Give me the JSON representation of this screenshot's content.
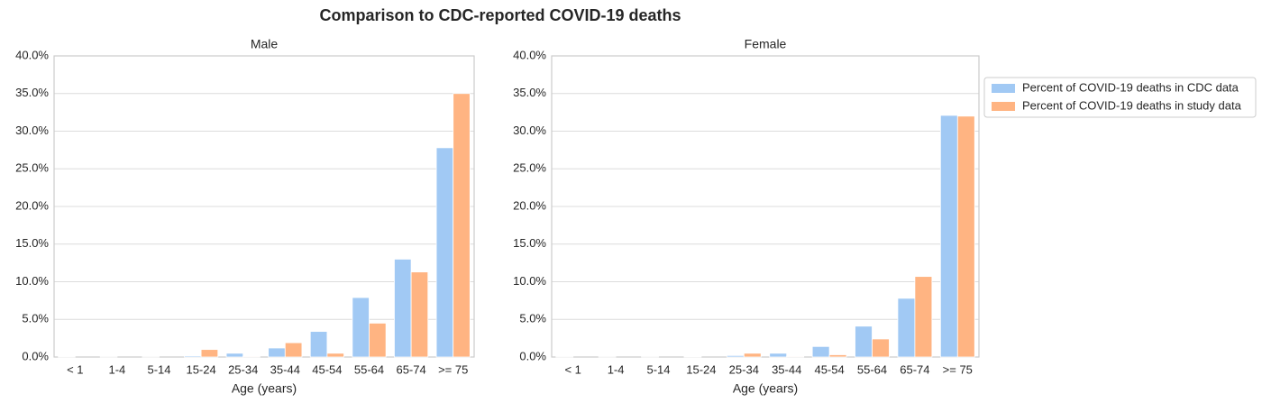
{
  "title": "Comparison to CDC-reported COVID-19 deaths",
  "chart_data": [
    {
      "type": "bar",
      "title": "Male",
      "xlabel": "Age (years)",
      "categories": [
        "< 1",
        "1-4",
        "5-14",
        "15-24",
        "25-34",
        "35-44",
        "45-54",
        "55-64",
        "65-74",
        ">= 75"
      ],
      "series": [
        {
          "color": "#a1c9f4",
          "values": [
            0.05,
            0.01,
            0.02,
            0.15,
            0.5,
            1.2,
            3.4,
            7.9,
            13.0,
            27.8
          ]
        },
        {
          "color": "#ffb482",
          "values": [
            0,
            0,
            0,
            1.0,
            0.1,
            1.9,
            0.5,
            4.5,
            11.3,
            35.0
          ]
        }
      ],
      "ylim": [
        0,
        40
      ],
      "yticks": [
        {
          "value": 0,
          "label": "0.0%"
        },
        {
          "value": 5,
          "label": "5.0%"
        },
        {
          "value": 10,
          "label": "10.0%"
        },
        {
          "value": 15,
          "label": "15.0%"
        },
        {
          "value": 20,
          "label": "20.0%"
        },
        {
          "value": 25,
          "label": "25.0%"
        },
        {
          "value": 30,
          "label": "30.0%"
        },
        {
          "value": 35,
          "label": "35.0%"
        },
        {
          "value": 40,
          "label": "40.0%"
        }
      ],
      "grid": true
    },
    {
      "type": "bar",
      "title": "Female",
      "xlabel": "Age (years)",
      "categories": [
        "< 1",
        "1-4",
        "5-14",
        "15-24",
        "25-34",
        "35-44",
        "45-54",
        "55-64",
        "65-74",
        ">= 75"
      ],
      "series": [
        {
          "name": "Percent of COVID-19 deaths in CDC data",
          "color": "#a1c9f4",
          "values": [
            0.03,
            0.01,
            0.02,
            0.08,
            0.2,
            0.5,
            1.4,
            4.1,
            7.8,
            32.1
          ]
        },
        {
          "name": "Percent of COVID-19 deaths in study data",
          "color": "#ffb482",
          "values": [
            0,
            0,
            0,
            0,
            0.5,
            0.1,
            0.3,
            2.4,
            10.7,
            32.0
          ]
        }
      ],
      "ylim": [
        0,
        40
      ],
      "yticks": [
        {
          "value": 0,
          "label": "0.0%"
        },
        {
          "value": 5,
          "label": "5.0%"
        },
        {
          "value": 10,
          "label": "10.0%"
        },
        {
          "value": 15,
          "label": "15.0%"
        },
        {
          "value": 20,
          "label": "20.0%"
        },
        {
          "value": 25,
          "label": "25.0%"
        },
        {
          "value": 30,
          "label": "30.0%"
        },
        {
          "value": 35,
          "label": "35.0%"
        },
        {
          "value": 40,
          "label": "40.0%"
        }
      ],
      "grid": true,
      "legend": "outside right"
    }
  ]
}
